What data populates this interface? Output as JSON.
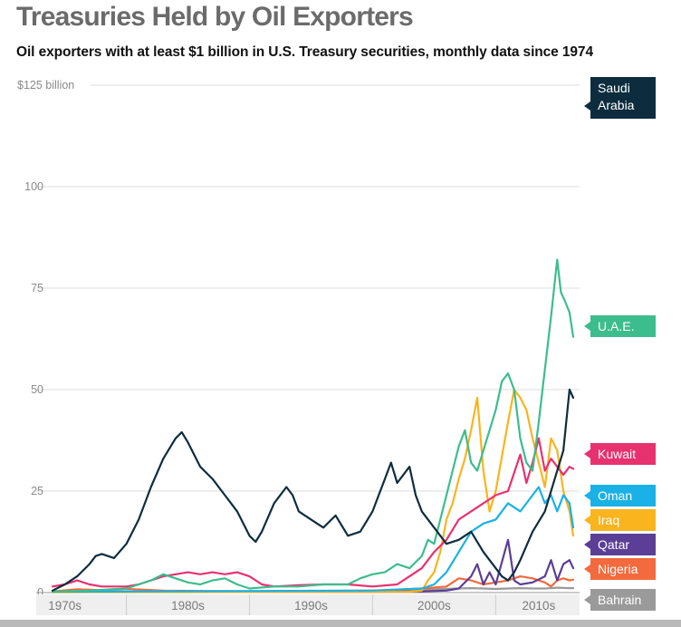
{
  "chart_data": {
    "type": "line",
    "title": "Treasuries Held by Oil Exporters",
    "subtitle": "Oil exporters with at least $1 billion in U.S. Treasury securities,  monthly data since 1974",
    "ylim": [
      0,
      125
    ],
    "y_ticks": [
      {
        "value": 125,
        "label": "$125 billion"
      },
      {
        "value": 100,
        "label": "100"
      },
      {
        "value": 75,
        "label": "75"
      },
      {
        "value": 50,
        "label": "50"
      },
      {
        "value": 25,
        "label": "25"
      },
      {
        "value": 0,
        "label": "0"
      }
    ],
    "xlim": [
      1974,
      2016.3
    ],
    "x_ticks": [
      {
        "value": 1975,
        "label": "1970s"
      },
      {
        "value": 1985,
        "label": "1980s"
      },
      {
        "value": 1995,
        "label": "1990s"
      },
      {
        "value": 2005,
        "label": "2000s"
      },
      {
        "value": 2013.5,
        "label": "2010s"
      }
    ],
    "decade_boundaries": [
      1980,
      1990,
      2000,
      2010
    ],
    "grid": "horizontal",
    "series": [
      {
        "name": "Bahrain",
        "label": "Bahrain",
        "color": "#9a9a9a",
        "points": [
          [
            1974,
            0.2
          ],
          [
            1995,
            0.3
          ],
          [
            2000,
            0.5
          ],
          [
            2003,
            0.5
          ],
          [
            2005,
            0.8
          ],
          [
            2007,
            1.0
          ],
          [
            2008,
            1.1
          ],
          [
            2009,
            1.0
          ],
          [
            2010,
            0.9
          ],
          [
            2011,
            1.0
          ],
          [
            2012,
            1.1
          ],
          [
            2013,
            1.0
          ],
          [
            2014,
            1.0
          ],
          [
            2015,
            1.2
          ],
          [
            2016,
            1.1
          ],
          [
            2016.3,
            1.1
          ]
        ]
      },
      {
        "name": "Nigeria",
        "label": "Nigeria",
        "color": "#f26a3d",
        "points": [
          [
            1974,
            0.3
          ],
          [
            1976,
            0.8
          ],
          [
            1978,
            0.6
          ],
          [
            1980,
            0.9
          ],
          [
            1983,
            0.5
          ],
          [
            1990,
            0.3
          ],
          [
            2000,
            0.5
          ],
          [
            2004,
            1.0
          ],
          [
            2006,
            1.5
          ],
          [
            2007,
            3.5
          ],
          [
            2008,
            3.0
          ],
          [
            2009,
            2.0
          ],
          [
            2010,
            2.5
          ],
          [
            2011,
            3.0
          ],
          [
            2012,
            4.0
          ],
          [
            2013,
            3.5
          ],
          [
            2014,
            2.5
          ],
          [
            2014.5,
            1.5
          ],
          [
            2015,
            3.0
          ],
          [
            2015.5,
            3.5
          ],
          [
            2016,
            3.0
          ],
          [
            2016.3,
            3.2
          ]
        ]
      },
      {
        "name": "Qatar",
        "label": "Qatar",
        "color": "#5b3e96",
        "points": [
          [
            1974,
            0.2
          ],
          [
            2000,
            0.2
          ],
          [
            2004,
            0.3
          ],
          [
            2006,
            0.5
          ],
          [
            2007,
            1.0
          ],
          [
            2008,
            4.0
          ],
          [
            2008.5,
            7.0
          ],
          [
            2009,
            2.0
          ],
          [
            2009.5,
            5.0
          ],
          [
            2010,
            2.0
          ],
          [
            2011,
            13.0
          ],
          [
            2011.5,
            3.0
          ],
          [
            2012,
            2.0
          ],
          [
            2013,
            2.5
          ],
          [
            2014,
            4.0
          ],
          [
            2014.5,
            8.0
          ],
          [
            2015,
            3.0
          ],
          [
            2015.5,
            7.0
          ],
          [
            2016,
            8.0
          ],
          [
            2016.3,
            6.0
          ]
        ]
      },
      {
        "name": "Iraq",
        "label": "Iraq",
        "color": "#f9b41e",
        "points": [
          [
            1974,
            0.1
          ],
          [
            2003,
            0.2
          ],
          [
            2004,
            0.5
          ],
          [
            2004.5,
            3.0
          ],
          [
            2005,
            5.0
          ],
          [
            2005.5,
            10.0
          ],
          [
            2006,
            18.0
          ],
          [
            2006.5,
            22.0
          ],
          [
            2007,
            28.0
          ],
          [
            2007.5,
            33.0
          ],
          [
            2008,
            40.0
          ],
          [
            2008.5,
            48.0
          ],
          [
            2009,
            30.0
          ],
          [
            2009.5,
            20.0
          ],
          [
            2010,
            25.0
          ],
          [
            2011,
            42.0
          ],
          [
            2011.5,
            50.0
          ],
          [
            2012,
            48.0
          ],
          [
            2012.5,
            45.0
          ],
          [
            2013,
            38.0
          ],
          [
            2013.5,
            32.0
          ],
          [
            2014,
            26.0
          ],
          [
            2014.5,
            38.0
          ],
          [
            2015,
            35.0
          ],
          [
            2015.5,
            25.0
          ],
          [
            2016,
            20.0
          ],
          [
            2016.3,
            14.0
          ]
        ]
      },
      {
        "name": "Oman",
        "label": "Oman",
        "color": "#1ab1e6",
        "points": [
          [
            1974,
            0.2
          ],
          [
            2000,
            0.5
          ],
          [
            2004,
            1.0
          ],
          [
            2005,
            2.0
          ],
          [
            2006,
            5.0
          ],
          [
            2007,
            10.0
          ],
          [
            2008,
            15.0
          ],
          [
            2009,
            17.0
          ],
          [
            2010,
            18.0
          ],
          [
            2011,
            22.0
          ],
          [
            2012,
            20.0
          ],
          [
            2013,
            24.0
          ],
          [
            2013.5,
            26.0
          ],
          [
            2014,
            22.0
          ],
          [
            2014.5,
            24.0
          ],
          [
            2015,
            20.0
          ],
          [
            2015.5,
            24.0
          ],
          [
            2016,
            22.0
          ],
          [
            2016.3,
            16.0
          ]
        ]
      },
      {
        "name": "Kuwait",
        "label": "Kuwait",
        "color": "#e8316f",
        "points": [
          [
            1974,
            1.5
          ],
          [
            1975,
            2.0
          ],
          [
            1976,
            3.0
          ],
          [
            1977,
            2.0
          ],
          [
            1978,
            1.5
          ],
          [
            1980,
            1.5
          ],
          [
            1981,
            2.0
          ],
          [
            1982,
            3.0
          ],
          [
            1983,
            4.0
          ],
          [
            1984,
            4.5
          ],
          [
            1985,
            5.0
          ],
          [
            1986,
            4.5
          ],
          [
            1987,
            5.0
          ],
          [
            1988,
            4.5
          ],
          [
            1989,
            5.0
          ],
          [
            1990,
            4.0
          ],
          [
            1991,
            2.0
          ],
          [
            1992,
            1.5
          ],
          [
            1994,
            1.8
          ],
          [
            1996,
            2.0
          ],
          [
            1998,
            2.0
          ],
          [
            2000,
            1.5
          ],
          [
            2002,
            2.0
          ],
          [
            2003,
            4.0
          ],
          [
            2004,
            6.0
          ],
          [
            2005,
            10.0
          ],
          [
            2006,
            13.0
          ],
          [
            2007,
            18.0
          ],
          [
            2008,
            20.0
          ],
          [
            2009,
            22.0
          ],
          [
            2010,
            24.0
          ],
          [
            2011,
            25.0
          ],
          [
            2012,
            34.0
          ],
          [
            2012.5,
            27.0
          ],
          [
            2013,
            32.0
          ],
          [
            2013.5,
            38.0
          ],
          [
            2014,
            30.0
          ],
          [
            2014.5,
            33.0
          ],
          [
            2015,
            31.0
          ],
          [
            2015.5,
            29.0
          ],
          [
            2016,
            31.0
          ],
          [
            2016.3,
            30.5
          ]
        ]
      },
      {
        "name": "U.A.E.",
        "label": "U.A.E.",
        "color": "#3dbd8d",
        "points": [
          [
            1974,
            0.2
          ],
          [
            1977,
            0.5
          ],
          [
            1980,
            1.0
          ],
          [
            1981,
            2.0
          ],
          [
            1982,
            3.0
          ],
          [
            1983,
            4.5
          ],
          [
            1984,
            3.5
          ],
          [
            1985,
            2.5
          ],
          [
            1986,
            2.0
          ],
          [
            1987,
            3.0
          ],
          [
            1988,
            3.5
          ],
          [
            1989,
            2.0
          ],
          [
            1990,
            1.0
          ],
          [
            1992,
            1.5
          ],
          [
            1994,
            1.5
          ],
          [
            1996,
            2.0
          ],
          [
            1998,
            2.0
          ],
          [
            1999,
            3.5
          ],
          [
            2000,
            4.5
          ],
          [
            2001,
            5.0
          ],
          [
            2002,
            7.0
          ],
          [
            2003,
            6.0
          ],
          [
            2004,
            9.0
          ],
          [
            2004.5,
            13.0
          ],
          [
            2005,
            12.0
          ],
          [
            2005.5,
            18.0
          ],
          [
            2006,
            24.0
          ],
          [
            2006.5,
            30.0
          ],
          [
            2007,
            36.0
          ],
          [
            2007.5,
            40.0
          ],
          [
            2008,
            32.0
          ],
          [
            2008.5,
            30.0
          ],
          [
            2009,
            35.0
          ],
          [
            2009.5,
            40.0
          ],
          [
            2010,
            45.0
          ],
          [
            2010.5,
            52.0
          ],
          [
            2011,
            54.0
          ],
          [
            2011.5,
            50.0
          ],
          [
            2012,
            38.0
          ],
          [
            2012.5,
            32.0
          ],
          [
            2013,
            30.0
          ],
          [
            2013.5,
            42.0
          ],
          [
            2014,
            55.0
          ],
          [
            2014.5,
            68.0
          ],
          [
            2015,
            82.0
          ],
          [
            2015.3,
            74.0
          ],
          [
            2015.6,
            72.0
          ],
          [
            2016,
            69.0
          ],
          [
            2016.3,
            63.0
          ]
        ]
      },
      {
        "name": "Saudi Arabia",
        "label": "Saudi Arabia",
        "color": "#0d2d3e",
        "points": [
          [
            1974,
            0.5
          ],
          [
            1975,
            2.0
          ],
          [
            1976,
            4.0
          ],
          [
            1977,
            7.0
          ],
          [
            1977.5,
            9.0
          ],
          [
            1978,
            9.5
          ],
          [
            1979,
            8.5
          ],
          [
            1980,
            12.0
          ],
          [
            1981,
            18.0
          ],
          [
            1982,
            26.0
          ],
          [
            1983,
            33.0
          ],
          [
            1984,
            38.0
          ],
          [
            1984.5,
            39.5
          ],
          [
            1985,
            37.0
          ],
          [
            1986,
            31.0
          ],
          [
            1987,
            28.0
          ],
          [
            1988,
            24.0
          ],
          [
            1989,
            20.0
          ],
          [
            1990,
            14.0
          ],
          [
            1990.5,
            12.5
          ],
          [
            1991,
            15.0
          ],
          [
            1992,
            22.0
          ],
          [
            1993,
            26.0
          ],
          [
            1993.5,
            24.0
          ],
          [
            1994,
            20.0
          ],
          [
            1995,
            18.0
          ],
          [
            1996,
            16.0
          ],
          [
            1997,
            19.0
          ],
          [
            1998,
            14.0
          ],
          [
            1999,
            15.0
          ],
          [
            2000,
            20.0
          ],
          [
            2001,
            28.0
          ],
          [
            2001.5,
            32.0
          ],
          [
            2002,
            27.0
          ],
          [
            2003,
            31.0
          ],
          [
            2003.5,
            24.0
          ],
          [
            2004,
            20.0
          ],
          [
            2005,
            16.0
          ],
          [
            2006,
            12.0
          ],
          [
            2007,
            13.0
          ],
          [
            2008,
            15.0
          ],
          [
            2009,
            10.0
          ],
          [
            2010,
            6.0
          ],
          [
            2010.5,
            4.0
          ],
          [
            2011,
            3.0
          ],
          [
            2011.5,
            5.0
          ],
          [
            2012,
            8.0
          ],
          [
            2013,
            15.0
          ],
          [
            2014,
            20.0
          ],
          [
            2015,
            30.0
          ],
          [
            2015.5,
            35.0
          ],
          [
            2016,
            50.0
          ],
          [
            2016.3,
            48.0
          ]
        ]
      }
    ]
  }
}
